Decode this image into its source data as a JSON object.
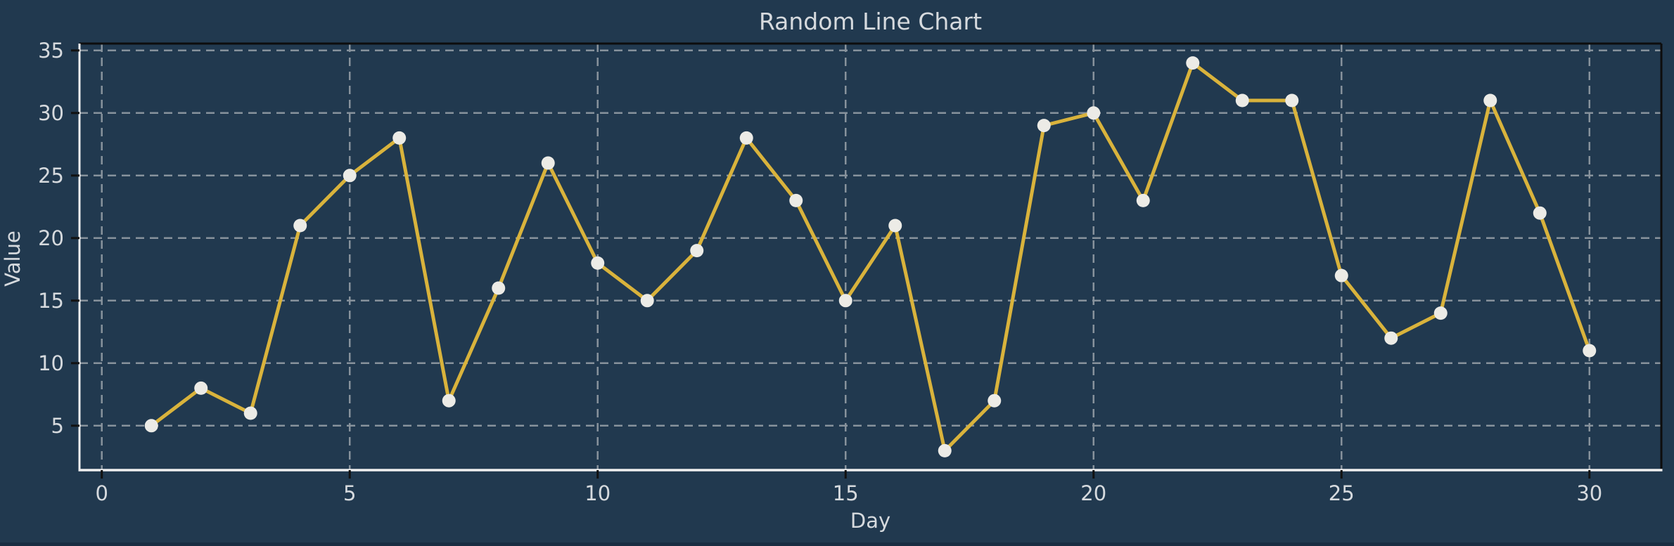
{
  "figure": {
    "title": "Random Line Chart",
    "xlabel": "Day",
    "ylabel": "Value"
  },
  "chart_data": {
    "type": "line",
    "title": "Random Line Chart",
    "xlabel": "Day",
    "ylabel": "Value",
    "x": [
      1,
      2,
      3,
      4,
      5,
      6,
      7,
      8,
      9,
      10,
      11,
      12,
      13,
      14,
      15,
      16,
      17,
      18,
      19,
      20,
      21,
      22,
      23,
      24,
      25,
      26,
      27,
      28,
      29,
      30
    ],
    "values": [
      5,
      8,
      6,
      21,
      25,
      28,
      7,
      16,
      26,
      18,
      15,
      19,
      28,
      23,
      15,
      21,
      3,
      7,
      29,
      30,
      23,
      34,
      31,
      31,
      17,
      12,
      14,
      31,
      22,
      11
    ],
    "xticks": [
      0,
      5,
      10,
      15,
      20,
      25,
      30
    ],
    "yticks": [
      5,
      10,
      15,
      20,
      25,
      30,
      35
    ],
    "xlim": [
      -0.45,
      31.45
    ],
    "ylim": [
      1.45,
      35.55
    ],
    "grid": "dashed",
    "legend": "none",
    "marker": "circle",
    "colors": {
      "background": "#21394f",
      "line": "#d9b33c",
      "marker_fill": "#ecebe6",
      "grid": "#87929c",
      "text": "#d6dade",
      "spine_light": "#f0f0f0",
      "spine_dark": "#0d0d0d",
      "tick_mark": "#111111",
      "bottom_edge": "#1a2d42"
    }
  }
}
